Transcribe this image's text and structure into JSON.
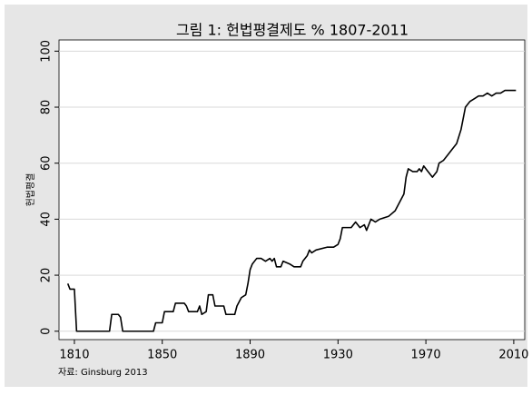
{
  "chart_data": {
    "type": "line",
    "title": "그림 1: 헌법평결제도 % 1807-2011",
    "y_label": "헌법평결",
    "source": "자료: Ginsburg 2013",
    "x": [
      1807,
      1808,
      1810,
      1811,
      1826,
      1827,
      1830,
      1831,
      1832,
      1846,
      1847,
      1850,
      1851,
      1855,
      1856,
      1860,
      1861,
      1862,
      1866,
      1867,
      1868,
      1870,
      1871,
      1873,
      1874,
      1878,
      1879,
      1883,
      1884,
      1886,
      1888,
      1889,
      1890,
      1891,
      1893,
      1895,
      1897,
      1899,
      1900,
      1901,
      1902,
      1904,
      1905,
      1908,
      1910,
      1913,
      1914,
      1916,
      1917,
      1918,
      1920,
      1925,
      1928,
      1930,
      1931,
      1932,
      1936,
      1938,
      1940,
      1942,
      1943,
      1945,
      1947,
      1949,
      1953,
      1956,
      1958,
      1960,
      1961,
      1962,
      1964,
      1966,
      1967,
      1968,
      1969,
      1970,
      1971,
      1973,
      1974,
      1975,
      1976,
      1978,
      1980,
      1982,
      1984,
      1986,
      1988,
      1990,
      1992,
      1994,
      1996,
      1998,
      2000,
      2002,
      2004,
      2006,
      2008,
      2011
    ],
    "series": [
      {
        "name": "헌법평결",
        "color": "#000000",
        "values": [
          17,
          15,
          15,
          0,
          0,
          6,
          6,
          5,
          0,
          0,
          3,
          3,
          7,
          7,
          10,
          10,
          9,
          7,
          7,
          9,
          6,
          7,
          13,
          13,
          9,
          9,
          6,
          6,
          9,
          12,
          13,
          17,
          22,
          24,
          26,
          26,
          25,
          26,
          25,
          26,
          23,
          23,
          25,
          24,
          23,
          23,
          25,
          27,
          29,
          28,
          29,
          30,
          30,
          31,
          33,
          37,
          37,
          39,
          37,
          38,
          36,
          40,
          39,
          40,
          41,
          43,
          46,
          49,
          55,
          58,
          57,
          57,
          58,
          57,
          59,
          58,
          57,
          55,
          56,
          57,
          60,
          61,
          63,
          65,
          67,
          72,
          80,
          82,
          83,
          84,
          84,
          85,
          84,
          85,
          85,
          86,
          86,
          86
        ]
      }
    ],
    "xlim": [
      1803,
      2015
    ],
    "ylim": [
      -3,
      104
    ],
    "xticks": [
      1810,
      1850,
      1890,
      1930,
      1970,
      2010
    ],
    "yticks": [
      0,
      20,
      40,
      60,
      80,
      100
    ],
    "grid": true
  }
}
